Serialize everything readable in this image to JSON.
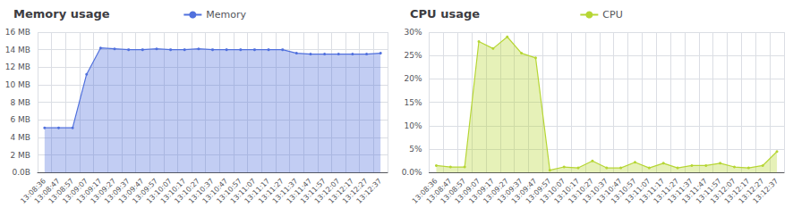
{
  "chart_data": [
    {
      "type": "area",
      "title": "Memory usage",
      "legend": "top",
      "grid": true,
      "categories": [
        "13:08:36",
        "13:08:47",
        "13:08:57",
        "13:09:07",
        "13:09:17",
        "13:09:27",
        "13:09:37",
        "13:09:47",
        "13:09:57",
        "13:10:07",
        "13:10:17",
        "13:10:27",
        "13:10:37",
        "13:10:47",
        "13:10:57",
        "13:11:07",
        "13:11:17",
        "13:11:27",
        "13:11:37",
        "13:11:47",
        "13:11:57",
        "13:12:07",
        "13:12:17",
        "13:12:27",
        "13:12:37"
      ],
      "series": [
        {
          "name": "Memory",
          "marker": "circle",
          "values": [
            5.1,
            5.1,
            5.1,
            11.2,
            14.2,
            14.1,
            14.0,
            14.0,
            14.1,
            14.0,
            14.0,
            14.1,
            14.0,
            14.0,
            14.0,
            14.0,
            14.0,
            14.0,
            13.6,
            13.5,
            13.5,
            13.5,
            13.5,
            13.5,
            13.6
          ]
        }
      ],
      "ylim": [
        0,
        16
      ],
      "yticks": [
        {
          "value": 0,
          "label": "0.0B"
        },
        {
          "value": 2,
          "label": "2 MB"
        },
        {
          "value": 4,
          "label": "4 MB"
        },
        {
          "value": 6,
          "label": "6 MB"
        },
        {
          "value": 8,
          "label": "8 MB"
        },
        {
          "value": 10,
          "label": "10 MB"
        },
        {
          "value": 12,
          "label": "12 MB"
        },
        {
          "value": 14,
          "label": "14 MB"
        },
        {
          "value": 16,
          "label": "16 MB"
        }
      ]
    },
    {
      "type": "area",
      "title": "CPU usage",
      "legend": "top",
      "grid": true,
      "categories": [
        "13:08:36",
        "13:08:47",
        "13:08:57",
        "13:09:07",
        "13:09:17",
        "13:09:27",
        "13:09:37",
        "13:09:47",
        "13:09:57",
        "13:10:07",
        "13:10:17",
        "13:10:27",
        "13:10:37",
        "13:10:47",
        "13:10:57",
        "13:11:07",
        "13:11:17",
        "13:11:27",
        "13:11:37",
        "13:11:47",
        "13:11:57",
        "13:12:07",
        "13:12:17",
        "13:12:27",
        "13:12:37"
      ],
      "series": [
        {
          "name": "CPU",
          "marker": "circle",
          "values": [
            1.5,
            1.2,
            1.2,
            28.0,
            26.5,
            29.0,
            25.5,
            24.5,
            0.5,
            1.2,
            1.0,
            2.5,
            1.0,
            1.0,
            2.2,
            1.0,
            2.0,
            1.0,
            1.5,
            1.5,
            2.0,
            1.2,
            1.0,
            1.5,
            4.5
          ]
        }
      ],
      "ylim": [
        0,
        30
      ],
      "yticks": [
        {
          "value": 0,
          "label": "0.0%"
        },
        {
          "value": 5,
          "label": "5%"
        },
        {
          "value": 10,
          "label": "10%"
        },
        {
          "value": 15,
          "label": "15%"
        },
        {
          "value": 20,
          "label": "20%"
        },
        {
          "value": 25,
          "label": "25%"
        },
        {
          "value": 30,
          "label": "30%"
        }
      ]
    }
  ]
}
